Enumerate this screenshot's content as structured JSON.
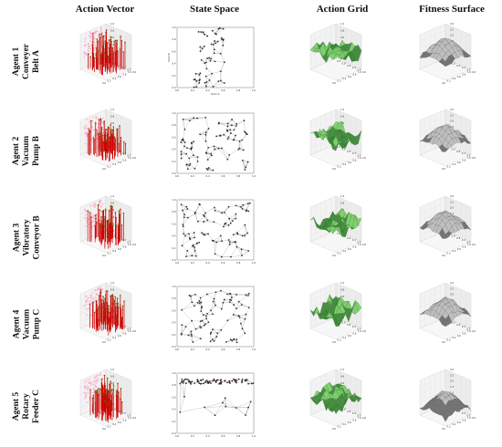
{
  "column_headers": [
    "Action Vector",
    "State Space",
    "Action Grid",
    "Fitness Surface"
  ],
  "agents": [
    {
      "label_lines": [
        "Agent 1",
        "Conveyer",
        "Belt A"
      ]
    },
    {
      "label_lines": [
        "Agent 2",
        "Vacuum",
        "Pump B"
      ]
    },
    {
      "label_lines": [
        "Agent 3",
        "Vibratory",
        "Conveyor B"
      ]
    },
    {
      "label_lines": [
        "Agent 4",
        "Vacuum",
        "Pump C"
      ]
    },
    {
      "label_lines": [
        "Agent 5",
        "Rotary",
        "Feeder C"
      ]
    }
  ],
  "colors": {
    "stem": "#cc0000",
    "stem_marker": "#6b5a00",
    "stem_shadow": "#ff9ec8",
    "point": "#3a2a2a",
    "mesh_line": "#8a8a8a",
    "surface_green": "#7ccf6a",
    "surface_green_dark": "#3f8a3a",
    "surface_gray": "#bdbdbd",
    "surface_gray_dark": "#6f6f6f"
  },
  "chart_data": [
    {
      "type": "scatter",
      "panel": "agent-1-action-vector",
      "ticks": [
        "0.0",
        "0.2",
        "0.4",
        "0.6",
        "0.8",
        "1.0"
      ],
      "z_ticks": [
        "0.0",
        "0.2",
        "0.4",
        "0.6",
        "0.8",
        "1.0"
      ],
      "xlabel": "Item A",
      "ylabel": "Item B"
    },
    {
      "type": "scatter",
      "panel": "agent-1-state-space",
      "ticks": [
        "0.0",
        "0.2",
        "0.4",
        "0.6",
        "0.8",
        "1.0"
      ],
      "xlabel": "Item A",
      "ylabel": "Item B"
    },
    {
      "type": "area",
      "panel": "agent-1-action-grid",
      "ticks": [
        "0.0",
        "0.2",
        "0.4",
        "0.6",
        "0.8",
        "1.0"
      ],
      "z_ticks": [
        "0.0",
        "0.2",
        "0.4",
        "0.6",
        "0.8",
        "1.0"
      ]
    },
    {
      "type": "area",
      "panel": "agent-1-fitness-surface",
      "ticks": [
        "0.0",
        "0.2",
        "0.4",
        "0.6",
        "0.8",
        "1.0"
      ],
      "z_ticks": [
        "0.0",
        "0.5",
        "1.0",
        "1.5",
        "2.0",
        "2.5",
        "3.0"
      ]
    },
    {
      "type": "scatter",
      "panel": "agent-2-action-vector",
      "ticks": [
        "0.0",
        "0.2",
        "0.4",
        "0.6",
        "0.8",
        "1.0"
      ],
      "z_ticks": [
        "0.0",
        "0.2",
        "0.4",
        "0.6",
        "0.8",
        "1.0"
      ]
    },
    {
      "type": "scatter",
      "panel": "agent-2-state-space",
      "ticks": [
        "0.0",
        "0.2",
        "0.4",
        "0.6",
        "0.8",
        "1.0"
      ]
    },
    {
      "type": "area",
      "panel": "agent-2-action-grid",
      "ticks": [
        "0.0",
        "0.2",
        "0.4",
        "0.6",
        "0.8",
        "1.0"
      ],
      "z_ticks": [
        "0.0",
        "0.2",
        "0.4",
        "0.6",
        "0.8",
        "1.0"
      ]
    },
    {
      "type": "area",
      "panel": "agent-2-fitness-surface",
      "ticks": [
        "0.0",
        "0.2",
        "0.4",
        "0.6",
        "0.8",
        "1.0"
      ],
      "z_ticks": [
        "0.0",
        "0.5",
        "1.0",
        "1.5",
        "2.0",
        "2.5",
        "3.0"
      ]
    },
    {
      "type": "scatter",
      "panel": "agent-3-action-vector",
      "ticks": [
        "0.0",
        "0.2",
        "0.4",
        "0.6",
        "0.8",
        "1.0"
      ],
      "z_ticks": [
        "0.0",
        "0.2",
        "0.4",
        "0.6",
        "0.8",
        "1.0"
      ]
    },
    {
      "type": "scatter",
      "panel": "agent-3-state-space",
      "ticks": [
        "0.0",
        "0.2",
        "0.4",
        "0.6",
        "0.8",
        "1.0"
      ]
    },
    {
      "type": "area",
      "panel": "agent-3-action-grid",
      "ticks": [
        "0.0",
        "0.2",
        "0.4",
        "0.6",
        "0.8",
        "1.0"
      ],
      "z_ticks": [
        "0.0",
        "0.2",
        "0.4",
        "0.6",
        "0.8",
        "1.0"
      ]
    },
    {
      "type": "area",
      "panel": "agent-3-fitness-surface",
      "ticks": [
        "0.0",
        "0.2",
        "0.4",
        "0.6",
        "0.8",
        "1.0"
      ],
      "z_ticks": [
        "0.0",
        "0.5",
        "1.0",
        "1.5",
        "2.0",
        "2.5",
        "3.0"
      ]
    },
    {
      "type": "scatter",
      "panel": "agent-4-action-vector",
      "ticks": [
        "0.0",
        "0.2",
        "0.4",
        "0.6",
        "0.8",
        "1.0"
      ],
      "z_ticks": [
        "0.0",
        "0.2",
        "0.4",
        "0.6",
        "0.8",
        "1.0"
      ]
    },
    {
      "type": "scatter",
      "panel": "agent-4-state-space",
      "ticks": [
        "0.0",
        "0.2",
        "0.4",
        "0.6",
        "0.8",
        "1.0"
      ]
    },
    {
      "type": "area",
      "panel": "agent-4-action-grid",
      "ticks": [
        "0.0",
        "0.2",
        "0.4",
        "0.6",
        "0.8",
        "1.0"
      ],
      "z_ticks": [
        "0.0",
        "0.2",
        "0.4",
        "0.6",
        "0.8",
        "1.0"
      ]
    },
    {
      "type": "area",
      "panel": "agent-4-fitness-surface",
      "ticks": [
        "0.0",
        "0.2",
        "0.4",
        "0.6",
        "0.8",
        "1.0"
      ],
      "z_ticks": [
        "0.0",
        "0.5",
        "1.0",
        "1.5",
        "2.0",
        "2.5",
        "3.0"
      ]
    },
    {
      "type": "scatter",
      "panel": "agent-5-action-vector",
      "ticks": [
        "0.0",
        "0.2",
        "0.4",
        "0.6",
        "0.8",
        "1.0"
      ],
      "z_ticks": [
        "0.0",
        "0.2",
        "0.4",
        "0.6",
        "0.8",
        "1.0"
      ]
    },
    {
      "type": "scatter",
      "panel": "agent-5-state-space",
      "ticks": [
        "0.0",
        "0.2",
        "0.4",
        "0.6",
        "0.8",
        "1.0"
      ]
    },
    {
      "type": "area",
      "panel": "agent-5-action-grid",
      "ticks": [
        "0.0",
        "0.2",
        "0.4",
        "0.6",
        "0.8",
        "1.0"
      ],
      "z_ticks": [
        "0.0",
        "0.2",
        "0.4",
        "0.6",
        "0.8",
        "1.0"
      ]
    },
    {
      "type": "area",
      "panel": "agent-5-fitness-surface",
      "ticks": [
        "0.0",
        "0.2",
        "0.4",
        "0.6",
        "0.8",
        "1.0"
      ],
      "z_ticks": [
        "0.0",
        "0.5",
        "1.0",
        "1.5",
        "2.0",
        "2.5",
        "3.0"
      ]
    }
  ]
}
